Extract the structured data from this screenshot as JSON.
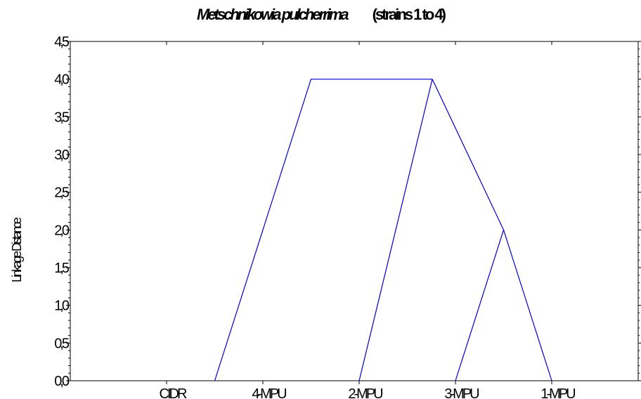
{
  "title": {
    "species": "Metschnikowia pulcherrima",
    "qualifier": "(strains 1 to 4)"
  },
  "chart_data": {
    "type": "dendrogram",
    "ylabel": "Linkage Distance",
    "xlabel": "",
    "ylim": [
      0,
      4.5
    ],
    "yticks": [
      "0,0",
      "0,5",
      "1,0",
      "1,5",
      "2,0",
      "2,5",
      "3,0",
      "3,5",
      "4,0",
      "4,5"
    ],
    "ytick_values": [
      0,
      0.5,
      1.0,
      1.5,
      2.0,
      2.5,
      3.0,
      3.5,
      4.0,
      4.5
    ],
    "leaves": [
      "CIDR",
      "4-MPU",
      "2-MPU",
      "3-MPU",
      "1-MPU"
    ],
    "merges": [
      {
        "left": "3-MPU",
        "right": "1-MPU",
        "height": 2.0
      },
      {
        "left": "2-MPU",
        "right": "(3-MPU,1-MPU)",
        "height": 4.0
      },
      {
        "left": "CIDR",
        "right": "4-MPU",
        "height": 4.0
      }
    ],
    "segments": [
      {
        "name": "cidr-4mpu-branch",
        "points": [
          [
            1.5,
            0
          ],
          [
            2.5,
            4.0
          ],
          [
            3.76,
            4.0
          ]
        ]
      },
      {
        "name": "2mpu-branch",
        "points": [
          [
            3.0,
            0
          ],
          [
            3.76,
            4.0
          ]
        ]
      },
      {
        "name": "3mpu-1mpu-join-upper",
        "points": [
          [
            3.76,
            4.0
          ],
          [
            4.5,
            2.0
          ],
          [
            5.0,
            0
          ]
        ]
      },
      {
        "name": "3mpu-branch",
        "points": [
          [
            4.0,
            0
          ],
          [
            4.5,
            2.0
          ]
        ]
      }
    ],
    "line_color": "#0000cc",
    "grid": false
  }
}
